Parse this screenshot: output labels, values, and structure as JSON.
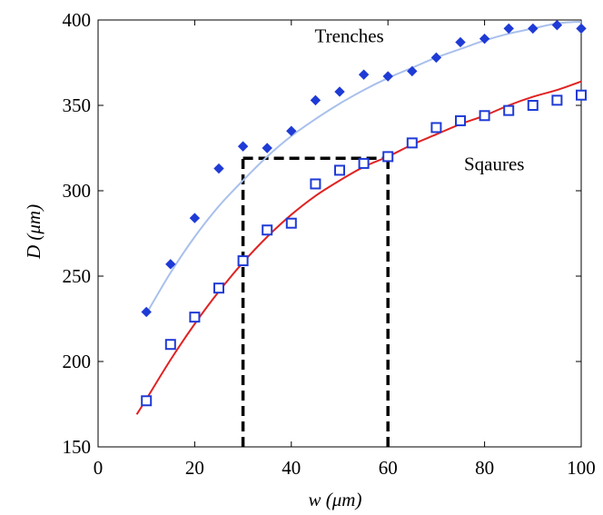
{
  "chart_data": {
    "type": "scatter",
    "xlabel": "w (μm)",
    "ylabel": "D (μm)",
    "xlim": [
      0,
      100
    ],
    "ylim": [
      150,
      400
    ],
    "x_ticks": [
      "0",
      "20",
      "40",
      "60",
      "80",
      "100"
    ],
    "y_ticks": [
      "150",
      "200",
      "250",
      "300",
      "350",
      "400"
    ],
    "grid": false,
    "series": [
      {
        "name": "Trenches",
        "marker": "filled-diamond",
        "color": "#1f3bd6",
        "fit_color": "#a9c0ec",
        "x": [
          10,
          15,
          20,
          25,
          30,
          35,
          40,
          45,
          50,
          55,
          60,
          65,
          70,
          75,
          80,
          85,
          90,
          95,
          100
        ],
        "y": [
          229,
          257,
          284,
          313,
          326,
          325,
          335,
          353,
          358,
          368,
          367,
          370,
          378,
          387,
          389,
          395,
          395,
          397,
          395
        ],
        "fit_x": [
          10,
          15,
          20,
          25,
          30,
          35,
          40,
          45,
          50,
          55,
          60,
          65,
          70,
          75,
          80,
          85,
          90,
          95,
          100
        ],
        "fit_y": [
          228,
          252,
          273,
          291,
          306,
          320,
          332,
          342,
          351,
          359,
          366,
          372,
          378,
          383,
          388,
          392,
          395,
          398,
          399
        ]
      },
      {
        "name": "Sqaures",
        "marker": "open-square",
        "color": "#1f3bd6",
        "fit_color": "#e02222",
        "x": [
          10,
          15,
          20,
          25,
          30,
          35,
          40,
          45,
          50,
          55,
          60,
          65,
          70,
          75,
          80,
          85,
          90,
          95,
          100
        ],
        "y": [
          177,
          210,
          226,
          243,
          259,
          277,
          281,
          304,
          312,
          316,
          320,
          328,
          337,
          341,
          344,
          347,
          350,
          353,
          356
        ],
        "fit_x": [
          8,
          10,
          15,
          20,
          25,
          30,
          35,
          40,
          45,
          50,
          55,
          60,
          65,
          70,
          75,
          80,
          85,
          90,
          95,
          100
        ],
        "fit_y": [
          169,
          178,
          201,
          222,
          241,
          258,
          273,
          286,
          297,
          306,
          314,
          320,
          327,
          333,
          339,
          344,
          350,
          355,
          359,
          364
        ]
      }
    ],
    "annotations": [
      {
        "text": "Trenches",
        "x": 52,
        "y": 387
      },
      {
        "text": "Sqaures",
        "x": 82,
        "y": 312
      }
    ],
    "reference_lines": {
      "style": "dashed",
      "color": "#000000",
      "x_from": 30,
      "x_to": 60,
      "y_top": 319
    }
  }
}
